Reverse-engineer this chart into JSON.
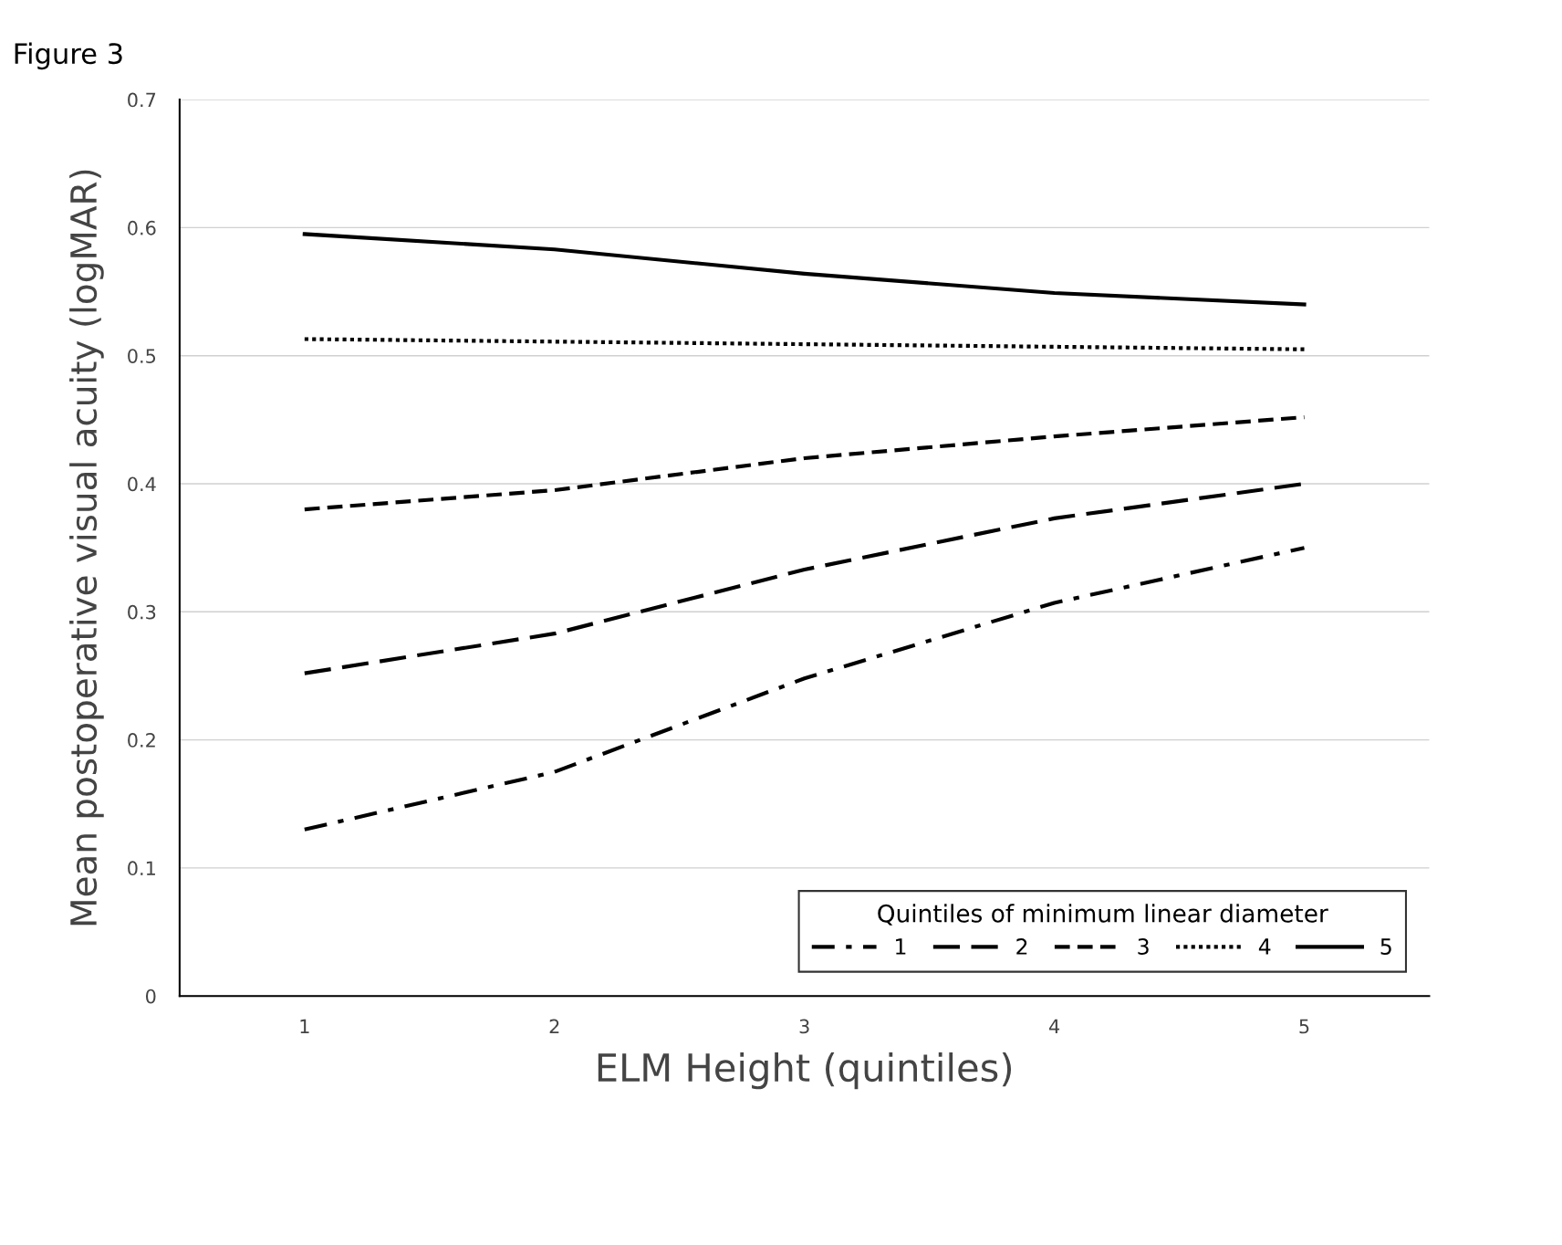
{
  "chart_data": {
    "type": "line",
    "title": "Figure 3",
    "xlabel": "ELM Height (quintiles)",
    "ylabel": "Mean postoperative visual acuity (logMAR)",
    "x": [
      1,
      2,
      3,
      4,
      5
    ],
    "xlim": [
      0.5,
      5.5
    ],
    "xticks": [
      1,
      2,
      3,
      4,
      5
    ],
    "ylim": [
      0,
      0.7
    ],
    "yticks": [
      0,
      0.1,
      0.2,
      0.3,
      0.4,
      0.5,
      0.6,
      0.7
    ],
    "grid": "y",
    "legend": "bottom right",
    "legend_title": "Quintiles of minimum linear diameter",
    "marker": "none",
    "series": [
      {
        "name": "1",
        "color": "#000000",
        "line_style": "dashdot",
        "values": [
          0.13,
          0.175,
          0.248,
          0.307,
          0.35
        ]
      },
      {
        "name": "2",
        "color": "#000000",
        "line_style": "longdash",
        "values": [
          0.252,
          0.283,
          0.333,
          0.373,
          0.4
        ]
      },
      {
        "name": "3",
        "color": "#000000",
        "line_style": "dashed",
        "values": [
          0.38,
          0.395,
          0.42,
          0.437,
          0.452
        ]
      },
      {
        "name": "4",
        "color": "#000000",
        "line_style": "dotted",
        "values": [
          0.513,
          0.511,
          0.509,
          0.507,
          0.505
        ]
      },
      {
        "name": "5",
        "color": "#000000",
        "line_style": "solid",
        "values": [
          0.595,
          0.583,
          0.564,
          0.549,
          0.54
        ]
      }
    ]
  }
}
